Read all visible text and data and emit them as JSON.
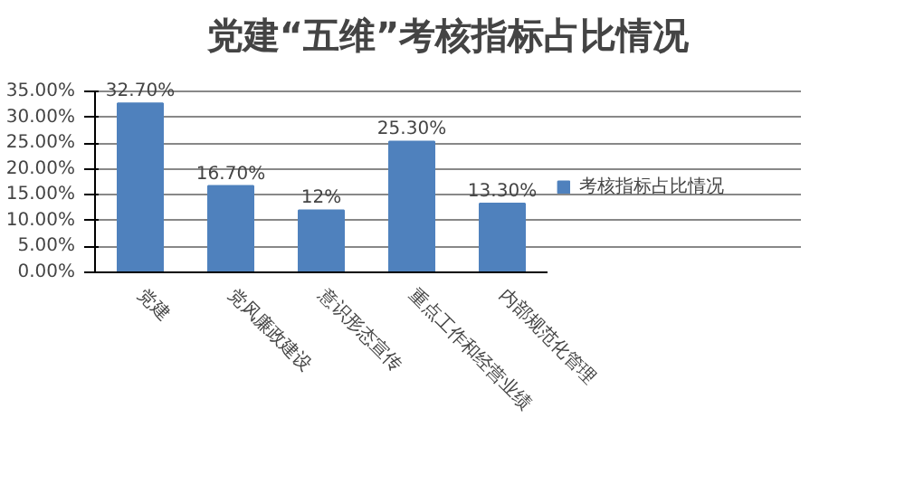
{
  "chart_data": {
    "type": "bar",
    "title": "党建“五维”考核指标占比情况",
    "categories": [
      "党建",
      "党风廉政建设",
      "意识形态宣传",
      "重点工作和经营业绩",
      "内部规范化管理"
    ],
    "series": [
      {
        "name": "考核指标占比情况",
        "color": "#4f81bd",
        "values": [
          32.7,
          16.7,
          12,
          25.3,
          13.3
        ],
        "value_labels": [
          "32.70%",
          "16.70%",
          "12%",
          "25.30%",
          "13.30%"
        ]
      }
    ],
    "ylim": [
      0,
      35
    ],
    "yticks": [
      {
        "value": 0,
        "label": "0.00%"
      },
      {
        "value": 5,
        "label": "5.00%"
      },
      {
        "value": 10,
        "label": "10.00%"
      },
      {
        "value": 15,
        "label": "15.00%"
      },
      {
        "value": 20,
        "label": "20.00%"
      },
      {
        "value": 25,
        "label": "25.00%"
      },
      {
        "value": 30,
        "label": "30.00%"
      },
      {
        "value": 35,
        "label": "35.00%"
      }
    ],
    "grid": "y",
    "legend": "right"
  }
}
